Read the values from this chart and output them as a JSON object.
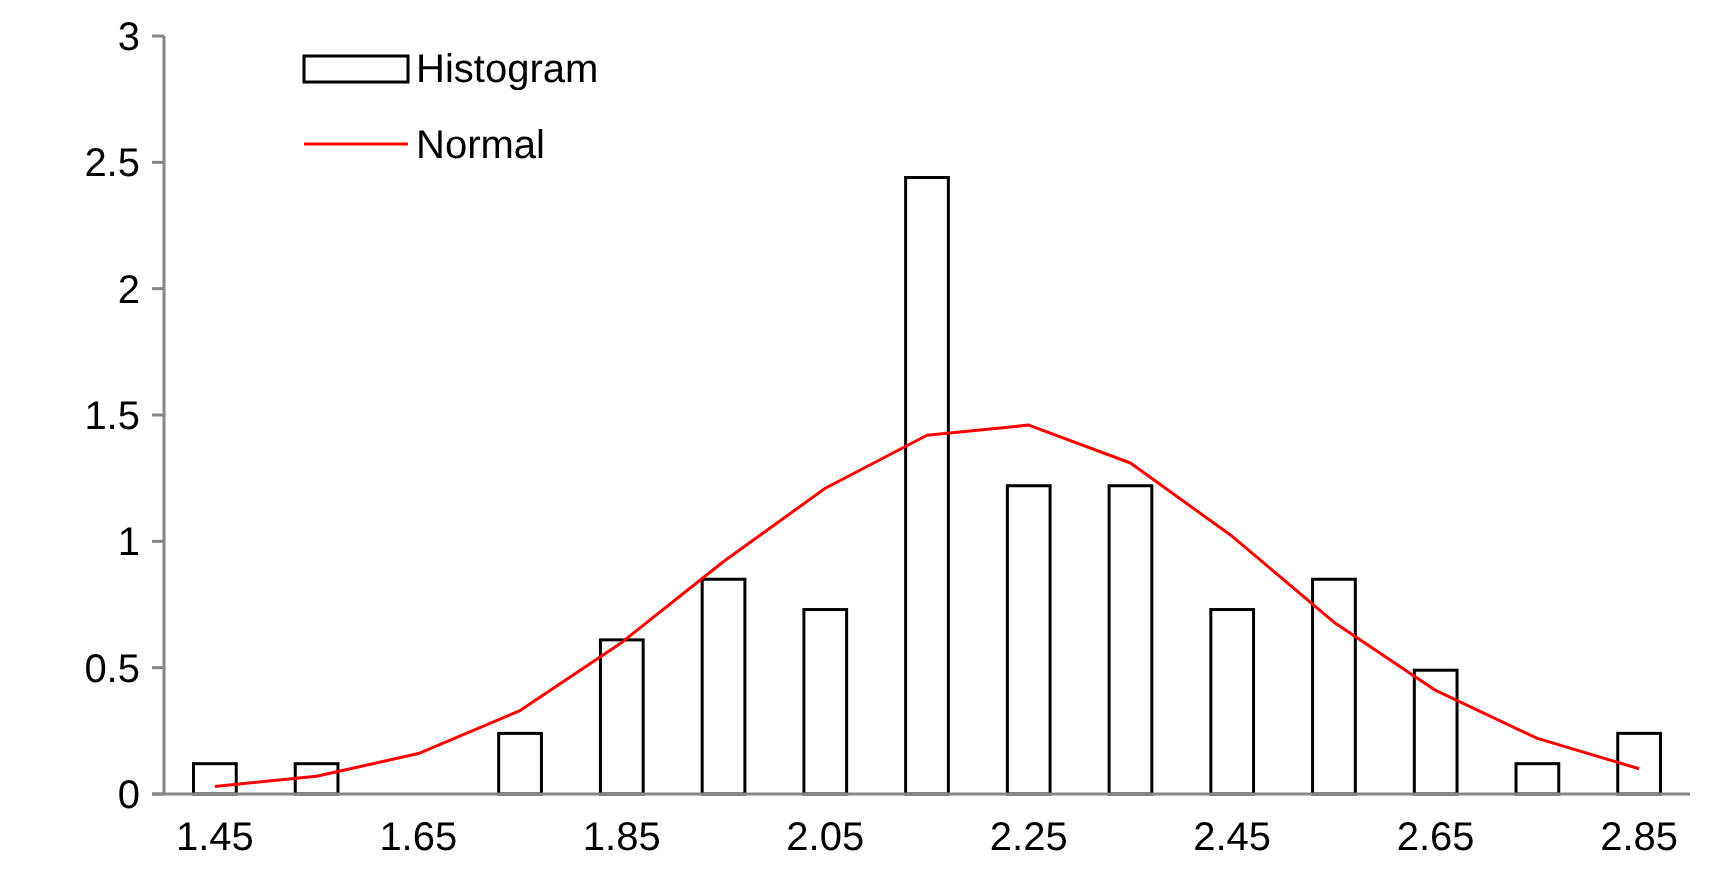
{
  "chart_data": {
    "type": "bar",
    "categories": [
      "1.45",
      null,
      "1.65",
      null,
      "1.85",
      null,
      "2.05",
      null,
      "2.25",
      null,
      "2.45",
      null,
      "2.65",
      null,
      "2.85"
    ],
    "series": [
      {
        "name": "Histogram",
        "color": "#ffffff",
        "values": [
          0.12,
          0.12,
          0,
          0.24,
          0.61,
          0.85,
          0.73,
          2.44,
          1.22,
          1.22,
          0.73,
          0.85,
          0.49,
          0.12,
          0.24
        ]
      },
      {
        "name": "Normal",
        "type": "line",
        "color": "#ff0000",
        "values": [
          0.03,
          0.07,
          0.16,
          0.33,
          0.6,
          0.92,
          1.21,
          1.42,
          1.46,
          1.31,
          1.02,
          0.68,
          0.41,
          0.22,
          0.1
        ]
      }
    ],
    "ylim": [
      0,
      3
    ],
    "yticks": [
      0,
      {
        "value": 0.5,
        "label": "0.5"
      },
      1,
      {
        "value": 1.5,
        "label": "1.5"
      },
      2,
      {
        "value": 2.5,
        "label": "2.5"
      },
      3
    ],
    "legend": "top left",
    "grid": false
  }
}
